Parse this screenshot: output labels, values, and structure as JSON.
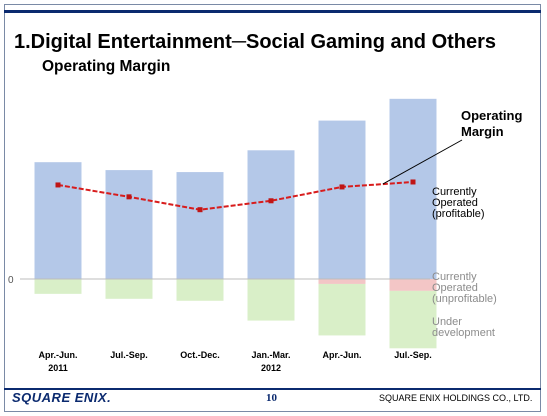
{
  "slide": {
    "title": "1.Digital Entertainment─Social Gaming and Others",
    "subtitle": "Operating Margin",
    "page_number": "10",
    "logo_text": "SQUARE ENIX.",
    "company": "SQUARE ENIX HOLDINGS CO., LTD."
  },
  "chart_data": {
    "type": "bar",
    "title": "Operating Margin",
    "categories": [
      [
        "Apr.-Jun.",
        "2011"
      ],
      [
        "Jul.-Sep.",
        ""
      ],
      [
        "Oct.-Dec.",
        ""
      ],
      [
        "Jan.-Mar.",
        "2012"
      ],
      [
        "Apr.-Jun.",
        ""
      ],
      [
        "Jul.-Sep.",
        ""
      ]
    ],
    "ytick_labels": [
      "0"
    ],
    "ylim": [
      -75,
      180
    ],
    "stacked": true,
    "series": [
      {
        "name": "Currently Operated (profitable)",
        "kind": "bar",
        "color": "#b4c8e8",
        "values": [
          118,
          110,
          108,
          130,
          160,
          182
        ]
      },
      {
        "name": "Currently Operated (unprofitable)",
        "kind": "bar",
        "color": "#f3c6c6",
        "values": [
          0,
          0,
          0,
          0,
          -5,
          -12
        ]
      },
      {
        "name": "Under development",
        "kind": "bar",
        "color": "#d9efc8",
        "values": [
          -15,
          -20,
          -22,
          -42,
          -52,
          -58
        ]
      },
      {
        "name": "Operating Margin",
        "kind": "line",
        "color": "#d81c1c",
        "values": [
          95,
          83,
          70,
          79,
          93,
          98
        ]
      }
    ],
    "labels": {
      "line_callout": [
        "Operating",
        "Margin"
      ],
      "profitable": [
        "Currently",
        "Operated",
        "(profitable)"
      ],
      "unprofitable": [
        "Currently",
        "Operated",
        "(unprofitable)"
      ],
      "development": [
        "Under",
        "development"
      ]
    },
    "grid": false,
    "legend": "right"
  }
}
